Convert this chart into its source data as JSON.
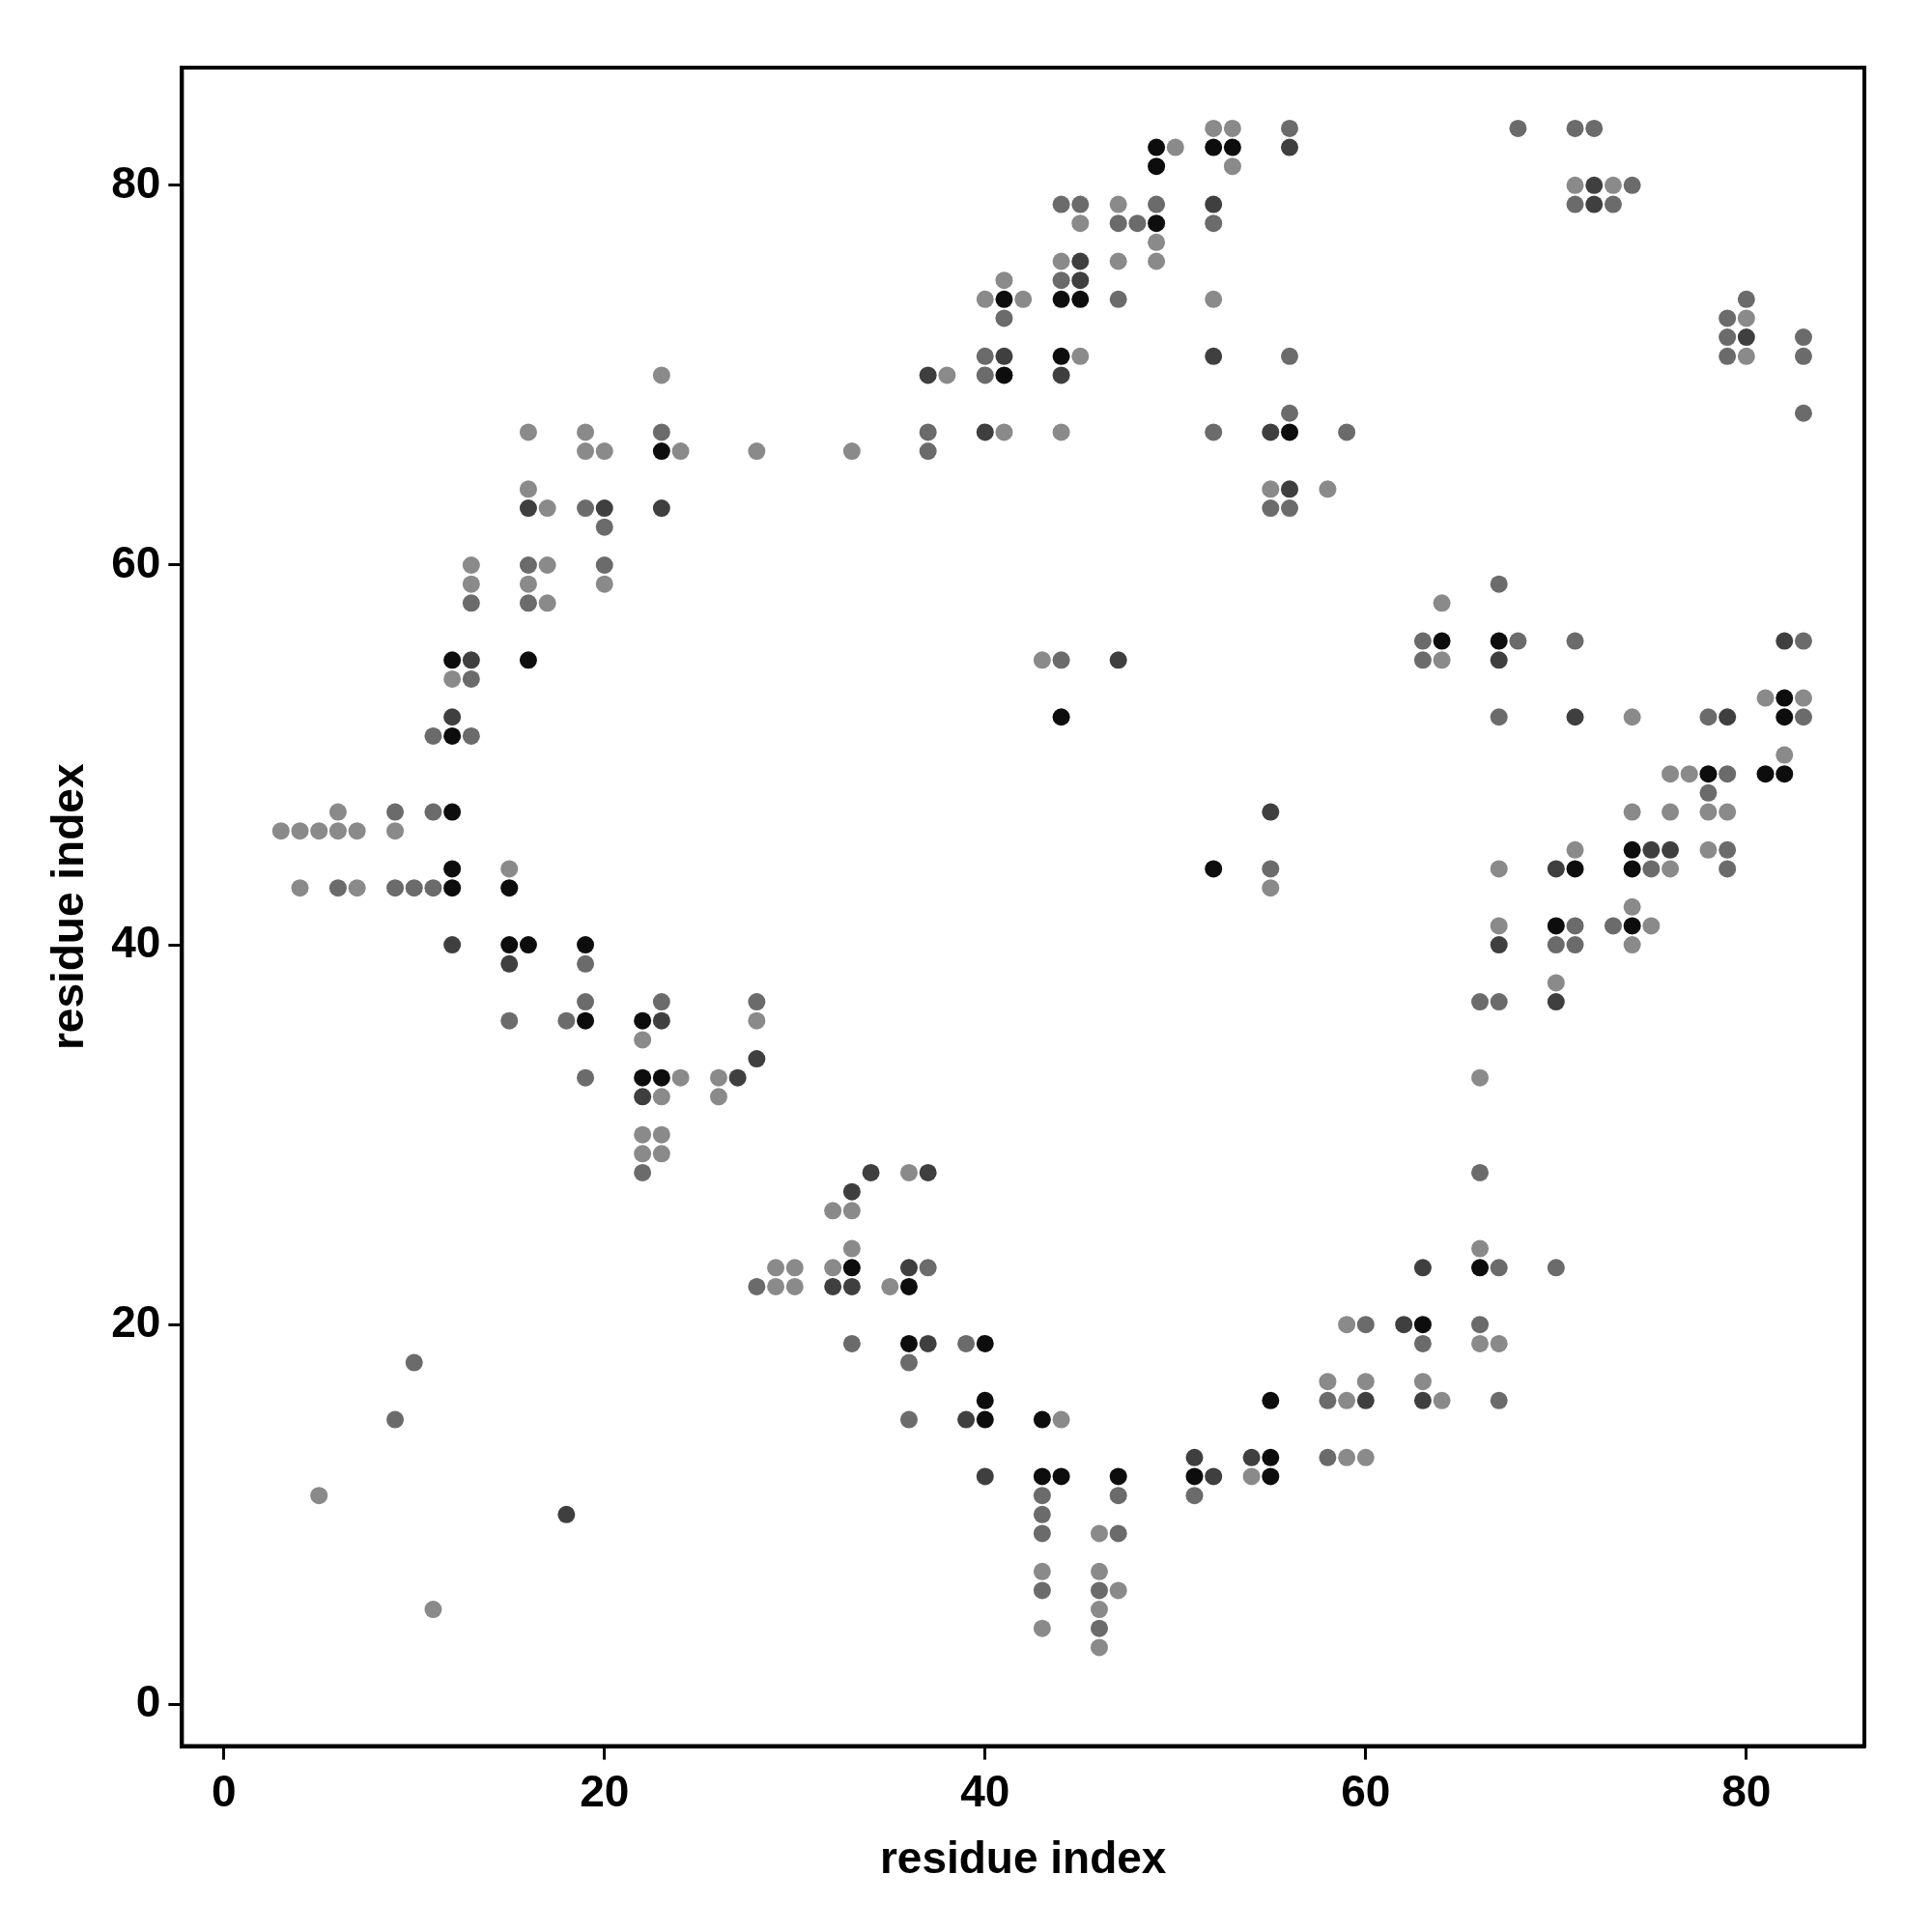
{
  "chart_data": {
    "type": "scatter",
    "xlabel": "residue index",
    "ylabel": "residue index",
    "xlim": [
      -2.2,
      86.2
    ],
    "ylim": [
      -2.2,
      86.2
    ],
    "xticks": [
      0,
      20,
      40,
      60,
      80
    ],
    "yticks": [
      0,
      20,
      40,
      60,
      80
    ],
    "grid": false,
    "legend": false,
    "marker": "circle",
    "series": [
      {
        "color": "#8a8a8a",
        "x": [
          3,
          4,
          4,
          5,
          5,
          6,
          6,
          7,
          7,
          9,
          11,
          12,
          13,
          13,
          15,
          16,
          16,
          16,
          17,
          17,
          17,
          19,
          19,
          20,
          20,
          22,
          22,
          22,
          23,
          23,
          23,
          23,
          24,
          24,
          26,
          26,
          28,
          28,
          29,
          29,
          30,
          30,
          32,
          32,
          33,
          33,
          33,
          35,
          36,
          38,
          40,
          41,
          41,
          42,
          43,
          43,
          43,
          44,
          44,
          44,
          45,
          45,
          46,
          46,
          46,
          46,
          47,
          47,
          47,
          49,
          49,
          50,
          52,
          52,
          53,
          53,
          54,
          55,
          55,
          58,
          58,
          59,
          59,
          59,
          60,
          60,
          63,
          64,
          64,
          64,
          66,
          66,
          66,
          67,
          67,
          67,
          70,
          71,
          71,
          73,
          74,
          74,
          74,
          74,
          75,
          76,
          76,
          76,
          77,
          78,
          78,
          79,
          80,
          80,
          81,
          82,
          83
        ],
        "values": [
          46,
          46,
          43,
          46,
          11,
          47,
          46,
          46,
          43,
          46,
          5,
          54,
          60,
          59,
          44,
          67,
          64,
          59,
          63,
          60,
          58,
          67,
          66,
          66,
          59,
          35,
          30,
          29,
          70,
          32,
          30,
          29,
          66,
          33,
          33,
          32,
          66,
          36,
          23,
          22,
          23,
          22,
          26,
          23,
          66,
          26,
          24,
          22,
          28,
          70,
          74,
          75,
          67,
          74,
          55,
          7,
          4,
          76,
          67,
          15,
          78,
          71,
          9,
          7,
          5,
          3,
          79,
          76,
          6,
          77,
          76,
          82,
          83,
          74,
          83,
          81,
          12,
          64,
          43,
          64,
          17,
          20,
          16,
          13,
          17,
          13,
          17,
          58,
          55,
          16,
          33,
          24,
          19,
          44,
          41,
          19,
          38,
          80,
          45,
          80,
          52,
          47,
          42,
          40,
          41,
          49,
          47,
          44,
          49,
          47,
          45,
          47,
          73,
          71,
          53,
          50,
          53
        ]
      },
      {
        "color": "#6b6b6b",
        "x": [
          6,
          9,
          9,
          9,
          10,
          10,
          11,
          11,
          11,
          13,
          13,
          13,
          15,
          16,
          16,
          18,
          19,
          19,
          19,
          19,
          20,
          20,
          22,
          23,
          23,
          28,
          28,
          33,
          36,
          36,
          37,
          37,
          37,
          39,
          40,
          40,
          41,
          43,
          43,
          43,
          43,
          44,
          44,
          44,
          45,
          46,
          46,
          47,
          47,
          47,
          47,
          48,
          49,
          51,
          52,
          52,
          55,
          55,
          56,
          56,
          56,
          56,
          58,
          58,
          59,
          60,
          63,
          63,
          63,
          66,
          66,
          66,
          67,
          67,
          67,
          67,
          67,
          68,
          68,
          70,
          70,
          71,
          71,
          71,
          71,
          71,
          72,
          73,
          73,
          74,
          75,
          78,
          78,
          79,
          79,
          79,
          79,
          79,
          79,
          80,
          83,
          83,
          83,
          83,
          83
        ],
        "values": [
          43,
          47,
          43,
          15,
          43,
          18,
          51,
          47,
          43,
          58,
          54,
          51,
          36,
          60,
          58,
          36,
          63,
          39,
          37,
          33,
          62,
          60,
          28,
          67,
          37,
          37,
          22,
          19,
          18,
          15,
          67,
          66,
          23,
          19,
          71,
          70,
          73,
          11,
          10,
          9,
          6,
          79,
          75,
          55,
          79,
          6,
          4,
          78,
          74,
          11,
          9,
          78,
          79,
          11,
          78,
          67,
          63,
          44,
          83,
          71,
          68,
          63,
          16,
          13,
          67,
          20,
          56,
          55,
          19,
          37,
          28,
          20,
          59,
          52,
          37,
          23,
          16,
          83,
          56,
          40,
          23,
          83,
          79,
          56,
          41,
          40,
          83,
          79,
          41,
          80,
          44,
          52,
          48,
          73,
          72,
          71,
          49,
          45,
          44,
          74,
          72,
          71,
          68,
          56,
          52
        ]
      },
      {
        "color": "#3f3f3f",
        "x": [
          12,
          12,
          13,
          15,
          16,
          18,
          20,
          22,
          23,
          23,
          27,
          28,
          32,
          33,
          33,
          34,
          36,
          37,
          37,
          37,
          39,
          40,
          40,
          41,
          44,
          45,
          45,
          47,
          51,
          52,
          52,
          52,
          54,
          55,
          55,
          56,
          56,
          60,
          62,
          63,
          63,
          67,
          67,
          70,
          70,
          71,
          72,
          72,
          75,
          76,
          79,
          80,
          82
        ],
        "values": [
          52,
          40,
          55,
          39,
          63,
          10,
          63,
          32,
          63,
          36,
          33,
          34,
          22,
          27,
          22,
          28,
          23,
          70,
          28,
          19,
          15,
          67,
          12,
          71,
          70,
          76,
          75,
          55,
          13,
          79,
          71,
          12,
          13,
          67,
          47,
          82,
          64,
          16,
          20,
          23,
          16,
          55,
          40,
          44,
          37,
          52,
          80,
          79,
          45,
          45,
          52,
          72,
          56
        ]
      },
      {
        "color": "#0d0d0d",
        "x": [
          12,
          12,
          12,
          12,
          12,
          15,
          15,
          16,
          16,
          19,
          19,
          22,
          22,
          23,
          23,
          33,
          36,
          36,
          40,
          40,
          40,
          41,
          41,
          43,
          43,
          44,
          44,
          44,
          44,
          45,
          47,
          49,
          49,
          49,
          51,
          52,
          52,
          53,
          55,
          55,
          55,
          56,
          63,
          64,
          66,
          67,
          70,
          71,
          74,
          74,
          74,
          78,
          81,
          82,
          82,
          82
        ],
        "values": [
          55,
          51,
          47,
          44,
          43,
          43,
          40,
          55,
          40,
          40,
          36,
          36,
          33,
          66,
          33,
          23,
          22,
          19,
          19,
          16,
          15,
          74,
          70,
          15,
          12,
          74,
          71,
          52,
          12,
          74,
          12,
          82,
          81,
          78,
          12,
          82,
          44,
          82,
          16,
          13,
          12,
          67,
          20,
          56,
          23,
          56,
          41,
          44,
          45,
          44,
          41,
          49,
          49,
          53,
          52,
          49
        ]
      }
    ]
  }
}
